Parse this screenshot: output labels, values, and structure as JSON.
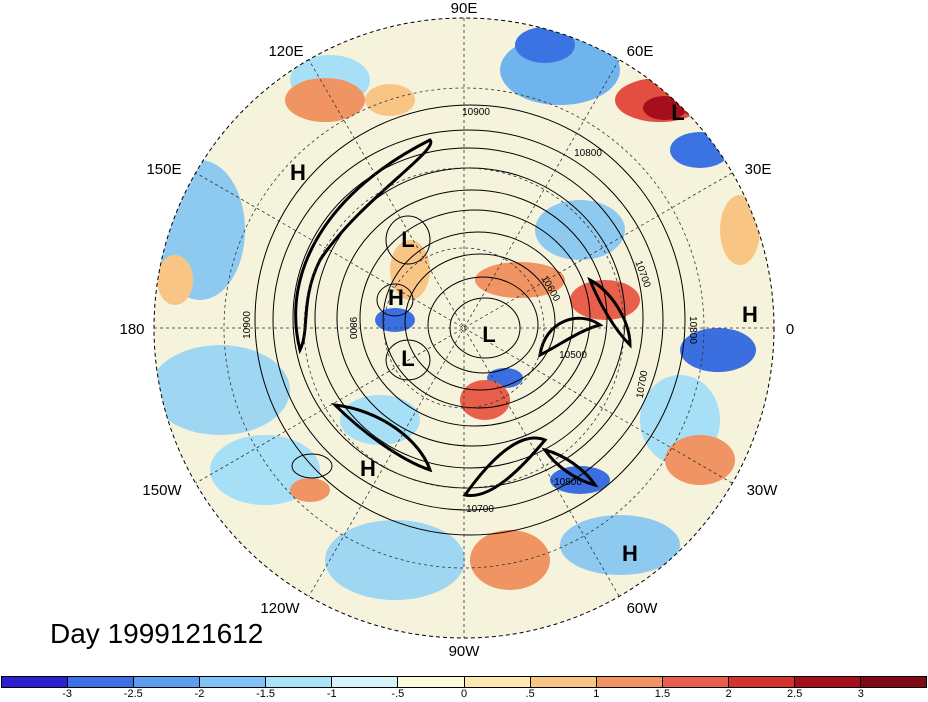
{
  "title": "Day 1999121612",
  "longitude_labels": [
    "90E",
    "60E",
    "30E",
    "0",
    "30W",
    "60W",
    "90W",
    "120W",
    "150W",
    "180",
    "150E",
    "120E"
  ],
  "pressure_centers": [
    "L",
    "H",
    "L",
    "H",
    "L",
    "L",
    "H",
    "H",
    "H"
  ],
  "contour_labels": [
    "10900",
    "10800",
    "10700",
    "10600",
    "10500",
    "10800",
    "10700",
    "10900",
    "9800",
    "10800",
    "10700"
  ],
  "colorbar": {
    "ticks": [
      "-3",
      "-2.5",
      "-2",
      "-1.5",
      "-1",
      "-.5",
      "0",
      ".5",
      "1",
      "1.5",
      "2",
      "2.5",
      "3"
    ],
    "colors": [
      "#2a1fd1",
      "#3d6fe6",
      "#5b9ef0",
      "#7fc2f5",
      "#a9e3f7",
      "#d4f4f9",
      "#fbfcdc",
      "#fde8b0",
      "#f9c585",
      "#f19463",
      "#e8604b",
      "#d1332e",
      "#a50f1c",
      "#7e0a15"
    ]
  }
}
